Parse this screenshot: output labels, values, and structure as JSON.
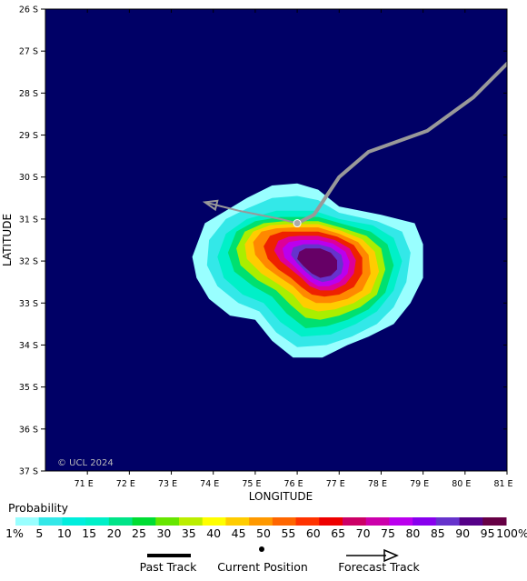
{
  "map": {
    "lon_range": [
      70,
      81
    ],
    "lat_range": [
      26,
      37
    ],
    "background_color": "#000066",
    "x_axis_title": "LONGITUDE",
    "y_axis_title": "LATITUDE",
    "x_ticks": [
      {
        "value": 71,
        "label": "71 E"
      },
      {
        "value": 72,
        "label": "72 E"
      },
      {
        "value": 73,
        "label": "73 E"
      },
      {
        "value": 74,
        "label": "74 E"
      },
      {
        "value": 75,
        "label": "75 E"
      },
      {
        "value": 76,
        "label": "76 E"
      },
      {
        "value": 77,
        "label": "77 E"
      },
      {
        "value": 78,
        "label": "78 E"
      },
      {
        "value": 79,
        "label": "79 E"
      },
      {
        "value": 80,
        "label": "80 E"
      },
      {
        "value": 81,
        "label": "81 E"
      }
    ],
    "y_ticks": [
      {
        "value": 26,
        "label": "26 S"
      },
      {
        "value": 27,
        "label": "27 S"
      },
      {
        "value": 28,
        "label": "28 S"
      },
      {
        "value": 29,
        "label": "29 S"
      },
      {
        "value": 30,
        "label": "30 S"
      },
      {
        "value": 31,
        "label": "31 S"
      },
      {
        "value": 32,
        "label": "32 S"
      },
      {
        "value": 33,
        "label": "33 S"
      },
      {
        "value": 34,
        "label": "34 S"
      },
      {
        "value": 35,
        "label": "35 S"
      },
      {
        "value": 36,
        "label": "36 S"
      },
      {
        "value": 37,
        "label": "37 S"
      }
    ],
    "copyright": "© UCL 2024",
    "probability_field": {
      "center_lon": 76.4,
      "center_lat": 32.2,
      "contours": [
        {
          "level": 1,
          "color": "#99ffff",
          "points": [
            [
              75.4,
              30.2
            ],
            [
              76.0,
              30.15
            ],
            [
              76.5,
              30.3
            ],
            [
              77.0,
              30.7
            ],
            [
              78.0,
              30.9
            ],
            [
              78.8,
              31.1
            ],
            [
              79.0,
              31.6
            ],
            [
              79.0,
              32.4
            ],
            [
              78.7,
              33.0
            ],
            [
              78.3,
              33.5
            ],
            [
              77.7,
              33.8
            ],
            [
              77.2,
              34.0
            ],
            [
              76.6,
              34.3
            ],
            [
              75.9,
              34.3
            ],
            [
              75.4,
              33.9
            ],
            [
              75.0,
              33.4
            ],
            [
              74.4,
              33.3
            ],
            [
              73.9,
              32.9
            ],
            [
              73.6,
              32.4
            ],
            [
              73.5,
              31.9
            ],
            [
              73.8,
              31.1
            ],
            [
              74.3,
              30.8
            ],
            [
              74.8,
              30.5
            ]
          ]
        },
        {
          "level": 5,
          "color": "#33e8e8",
          "points": [
            [
              75.4,
              30.5
            ],
            [
              76.0,
              30.45
            ],
            [
              76.5,
              30.55
            ],
            [
              77.0,
              30.85
            ],
            [
              77.9,
              31.05
            ],
            [
              78.5,
              31.3
            ],
            [
              78.7,
              31.8
            ],
            [
              78.6,
              32.5
            ],
            [
              78.3,
              33.1
            ],
            [
              77.9,
              33.5
            ],
            [
              77.3,
              33.8
            ],
            [
              76.7,
              34.0
            ],
            [
              76.0,
              34.05
            ],
            [
              75.5,
              33.7
            ],
            [
              75.1,
              33.2
            ],
            [
              74.6,
              33.0
            ],
            [
              74.1,
              32.6
            ],
            [
              73.85,
              32.1
            ],
            [
              73.9,
              31.5
            ],
            [
              74.3,
              31.0
            ],
            [
              74.8,
              30.75
            ]
          ]
        },
        {
          "level": 10,
          "color": "#00f0c8",
          "points": [
            [
              75.5,
              30.8
            ],
            [
              76.4,
              30.8
            ],
            [
              77.0,
              31.0
            ],
            [
              77.8,
              31.15
            ],
            [
              78.3,
              31.45
            ],
            [
              78.5,
              32.0
            ],
            [
              78.3,
              32.7
            ],
            [
              77.9,
              33.2
            ],
            [
              77.4,
              33.5
            ],
            [
              76.8,
              33.75
            ],
            [
              76.1,
              33.8
            ],
            [
              75.6,
              33.45
            ],
            [
              75.2,
              33.0
            ],
            [
              74.7,
              32.8
            ],
            [
              74.25,
              32.4
            ],
            [
              74.1,
              31.9
            ],
            [
              74.3,
              31.35
            ],
            [
              74.8,
              31.0
            ]
          ]
        },
        {
          "level": 20,
          "color": "#00e070",
          "points": [
            [
              75.6,
              30.95
            ],
            [
              76.5,
              30.95
            ],
            [
              77.1,
              31.12
            ],
            [
              77.75,
              31.3
            ],
            [
              78.15,
              31.6
            ],
            [
              78.3,
              32.1
            ],
            [
              78.1,
              32.75
            ],
            [
              77.7,
              33.15
            ],
            [
              77.2,
              33.4
            ],
            [
              76.7,
              33.55
            ],
            [
              76.2,
              33.6
            ],
            [
              75.75,
              33.25
            ],
            [
              75.4,
              32.85
            ],
            [
              74.95,
              32.6
            ],
            [
              74.5,
              32.25
            ],
            [
              74.35,
              31.8
            ],
            [
              74.55,
              31.3
            ],
            [
              75.0,
              31.05
            ]
          ]
        },
        {
          "level": 30,
          "color": "#aaee00",
          "points": [
            [
              75.7,
              31.05
            ],
            [
              76.5,
              31.05
            ],
            [
              77.1,
              31.22
            ],
            [
              77.65,
              31.4
            ],
            [
              78.0,
              31.7
            ],
            [
              78.1,
              32.2
            ],
            [
              77.9,
              32.8
            ],
            [
              77.5,
              33.1
            ],
            [
              77.0,
              33.3
            ],
            [
              76.55,
              33.4
            ],
            [
              76.2,
              33.35
            ],
            [
              75.85,
              33.05
            ],
            [
              75.5,
              32.7
            ],
            [
              75.05,
              32.45
            ],
            [
              74.65,
              32.1
            ],
            [
              74.55,
              31.7
            ],
            [
              74.75,
              31.3
            ],
            [
              75.2,
              31.1
            ]
          ]
        },
        {
          "level": 40,
          "color": "#ffcc00",
          "points": [
            [
              75.8,
              31.12
            ],
            [
              76.5,
              31.12
            ],
            [
              77.05,
              31.28
            ],
            [
              77.55,
              31.48
            ],
            [
              77.85,
              31.78
            ],
            [
              77.95,
              32.25
            ],
            [
              77.75,
              32.75
            ],
            [
              77.35,
              33.0
            ],
            [
              76.9,
              33.15
            ],
            [
              76.5,
              33.2
            ],
            [
              76.15,
              33.1
            ],
            [
              75.9,
              32.8
            ],
            [
              75.55,
              32.55
            ],
            [
              75.15,
              32.3
            ],
            [
              74.8,
              31.95
            ],
            [
              74.75,
              31.6
            ],
            [
              74.95,
              31.3
            ],
            [
              75.35,
              31.15
            ]
          ]
        },
        {
          "level": 50,
          "color": "#ff8800",
          "points": [
            [
              75.9,
              31.2
            ],
            [
              76.5,
              31.2
            ],
            [
              77.0,
              31.35
            ],
            [
              77.45,
              31.55
            ],
            [
              77.7,
              31.85
            ],
            [
              77.75,
              32.3
            ],
            [
              77.55,
              32.7
            ],
            [
              77.2,
              32.9
            ],
            [
              76.8,
              33.0
            ],
            [
              76.45,
              33.0
            ],
            [
              76.15,
              32.85
            ],
            [
              75.9,
              32.6
            ],
            [
              75.6,
              32.4
            ],
            [
              75.25,
              32.15
            ],
            [
              75.0,
              31.85
            ],
            [
              74.95,
              31.55
            ],
            [
              75.15,
              31.3
            ],
            [
              75.5,
              31.22
            ]
          ]
        },
        {
          "level": 60,
          "color": "#ee2200",
          "points": [
            [
              76.0,
              31.3
            ],
            [
              76.5,
              31.3
            ],
            [
              76.95,
              31.42
            ],
            [
              77.35,
              31.62
            ],
            [
              77.55,
              31.92
            ],
            [
              77.55,
              32.3
            ],
            [
              77.35,
              32.62
            ],
            [
              77.0,
              32.8
            ],
            [
              76.65,
              32.85
            ],
            [
              76.35,
              32.8
            ],
            [
              76.1,
              32.62
            ],
            [
              75.85,
              32.4
            ],
            [
              75.55,
              32.2
            ],
            [
              75.3,
              31.95
            ],
            [
              75.2,
              31.65
            ],
            [
              75.35,
              31.4
            ],
            [
              75.65,
              31.3
            ]
          ]
        },
        {
          "level": 70,
          "color": "#dd0099",
          "points": [
            [
              76.05,
              31.4
            ],
            [
              76.5,
              31.4
            ],
            [
              76.9,
              31.5
            ],
            [
              77.25,
              31.7
            ],
            [
              77.4,
              31.98
            ],
            [
              77.35,
              32.3
            ],
            [
              77.15,
              32.55
            ],
            [
              76.85,
              32.7
            ],
            [
              76.55,
              32.7
            ],
            [
              76.3,
              32.6
            ],
            [
              76.1,
              32.4
            ],
            [
              75.85,
              32.2
            ],
            [
              75.6,
              32.0
            ],
            [
              75.45,
              31.75
            ],
            [
              75.55,
              31.52
            ],
            [
              75.8,
              31.42
            ]
          ]
        },
        {
          "level": 80,
          "color": "#bb00ee",
          "points": [
            [
              76.1,
              31.5
            ],
            [
              76.5,
              31.5
            ],
            [
              76.85,
              31.58
            ],
            [
              77.15,
              31.78
            ],
            [
              77.25,
              32.02
            ],
            [
              77.2,
              32.3
            ],
            [
              77.0,
              32.5
            ],
            [
              76.75,
              32.6
            ],
            [
              76.5,
              32.6
            ],
            [
              76.3,
              32.48
            ],
            [
              76.1,
              32.3
            ],
            [
              75.9,
              32.1
            ],
            [
              75.7,
              31.92
            ],
            [
              75.65,
              31.7
            ],
            [
              75.8,
              31.55
            ]
          ]
        },
        {
          "level": 90,
          "color": "#6633cc",
          "points": [
            [
              76.15,
              31.6
            ],
            [
              76.5,
              31.6
            ],
            [
              76.8,
              31.68
            ],
            [
              77.05,
              31.85
            ],
            [
              77.1,
              32.08
            ],
            [
              77.05,
              32.3
            ],
            [
              76.85,
              32.45
            ],
            [
              76.6,
              32.5
            ],
            [
              76.4,
              32.42
            ],
            [
              76.2,
              32.25
            ],
            [
              76.0,
              32.05
            ],
            [
              75.85,
              31.85
            ],
            [
              75.9,
              31.68
            ]
          ]
        },
        {
          "level": 95,
          "color": "#660066",
          "points": [
            [
              76.2,
              31.7
            ],
            [
              76.55,
              31.7
            ],
            [
              76.8,
              31.8
            ],
            [
              76.95,
              31.98
            ],
            [
              76.95,
              32.2
            ],
            [
              76.8,
              32.35
            ],
            [
              76.55,
              32.4
            ],
            [
              76.35,
              32.3
            ],
            [
              76.15,
              32.12
            ],
            [
              76.0,
              31.95
            ],
            [
              76.05,
              31.78
            ]
          ]
        }
      ]
    },
    "past_track": [
      [
        81.0,
        27.3
      ],
      [
        80.2,
        28.1
      ],
      [
        79.1,
        28.9
      ],
      [
        77.7,
        29.4
      ],
      [
        77.0,
        30.0
      ],
      [
        76.4,
        30.9
      ],
      [
        76.0,
        31.1
      ]
    ],
    "forecast_track": [
      [
        76.0,
        31.1
      ],
      [
        75.6,
        31.0
      ],
      [
        74.6,
        30.8
      ],
      [
        73.8,
        30.6
      ]
    ],
    "current_position": [
      76.0,
      31.1
    ],
    "track_color": "#999999"
  },
  "legend": {
    "title": "Probability",
    "items": [
      {
        "label": "1%",
        "color": "#99ffff"
      },
      {
        "label": "5",
        "color": "#33e8e8"
      },
      {
        "label": "10",
        "color": "#00eedd"
      },
      {
        "label": "15",
        "color": "#00f0c8"
      },
      {
        "label": "20",
        "color": "#00e488"
      },
      {
        "label": "25",
        "color": "#00dd33"
      },
      {
        "label": "30",
        "color": "#66e600"
      },
      {
        "label": "35",
        "color": "#bbee00"
      },
      {
        "label": "40",
        "color": "#ffff00"
      },
      {
        "label": "45",
        "color": "#ffcc00"
      },
      {
        "label": "50",
        "color": "#ff9900"
      },
      {
        "label": "55",
        "color": "#ff6600"
      },
      {
        "label": "60",
        "color": "#ff3300"
      },
      {
        "label": "65",
        "color": "#ee0000"
      },
      {
        "label": "70",
        "color": "#cc0066"
      },
      {
        "label": "75",
        "color": "#cc00aa"
      },
      {
        "label": "80",
        "color": "#bb00ee"
      },
      {
        "label": "85",
        "color": "#8800ee"
      },
      {
        "label": "90",
        "color": "#6633cc"
      },
      {
        "label": "95",
        "color": "#550088"
      },
      {
        "label": "100%",
        "color": "#660044"
      }
    ],
    "track_legend": {
      "past_track_label": "Past Track",
      "current_position_label": "Current Position",
      "forecast_track_label": "Forecast Track"
    }
  }
}
